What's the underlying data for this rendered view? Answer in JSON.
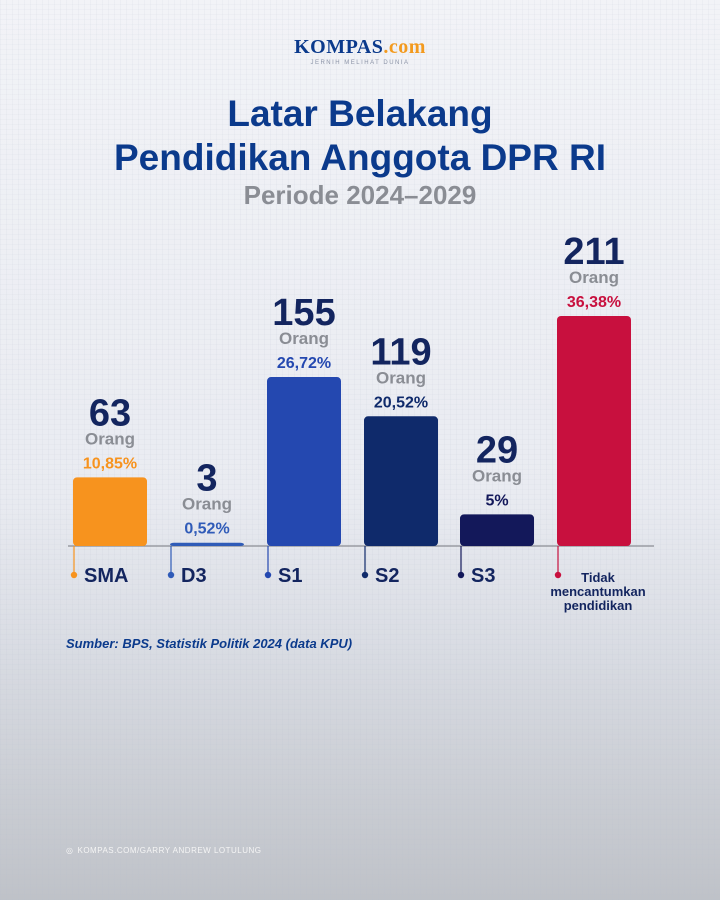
{
  "logo": {
    "main": "KOMPAS",
    "suffix": ".com",
    "tagline": "JERNIH MELIHAT DUNIA"
  },
  "title_line1": "Latar Belakang",
  "title_line2": "Pendidikan Anggota DPR RI",
  "subtitle": "Periode 2024–2029",
  "source": "Sumber: BPS, Statistik Politik 2024 (data KPU)",
  "photo_credit": "KOMPAS.COM/GARRY ANDREW LOTULUNG",
  "chart_data": {
    "type": "bar",
    "title": "Latar Belakang Pendidikan Anggota DPR RI",
    "subtitle": "Periode 2024–2029",
    "unit_label": "Orang",
    "categories": [
      "SMA",
      "D3",
      "S1",
      "S2",
      "S3",
      "Tidak mencantumkan pendidikan"
    ],
    "category_lines": [
      [
        "SMA"
      ],
      [
        "D3"
      ],
      [
        "S1"
      ],
      [
        "S2"
      ],
      [
        "S3"
      ],
      [
        "Tidak",
        "mencantumkan",
        "pendidikan"
      ]
    ],
    "values": [
      63,
      3,
      155,
      119,
      29,
      211
    ],
    "percent_labels": [
      "10,85%",
      "0,52%",
      "26,72%",
      "20,52%",
      "5%",
      "36,38%"
    ],
    "colors": [
      "#f7931e",
      "#2f5bb8",
      "#2448b0",
      "#0f2a6b",
      "#13185a",
      "#c8103e"
    ],
    "percent_colors": [
      "#f7931e",
      "#2f5bb8",
      "#2448b0",
      "#0f2a6b",
      "#13185a",
      "#c8103e"
    ],
    "value_color": "#13255f",
    "unit_color": "#8a8d94",
    "ylim": [
      0,
      211
    ],
    "grid": false,
    "legend": "none"
  }
}
